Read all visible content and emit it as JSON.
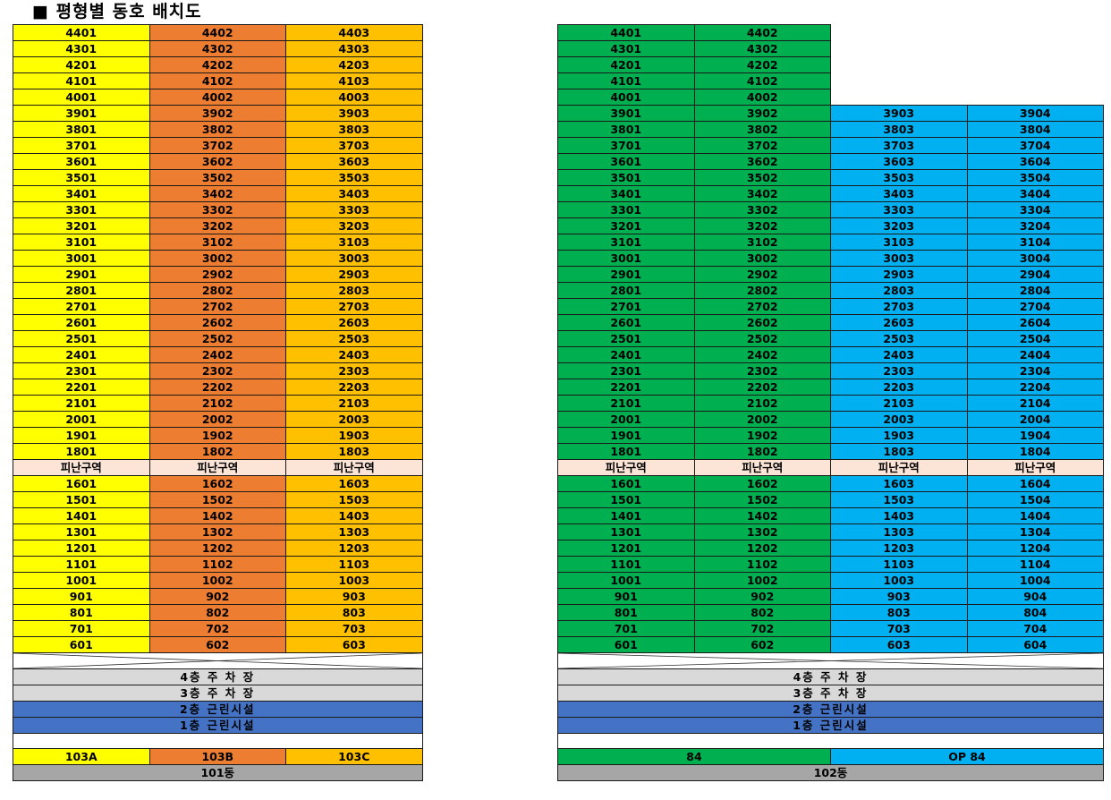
{
  "title": "■ 평형별 동호 배치도",
  "colors": {
    "type_103A": "#ffff00",
    "type_103B": "#ed7d31",
    "type_103C": "#ffc000",
    "type_84": "#00b050",
    "type_op84": "#00b0f0",
    "refuge": "#fce4d6",
    "parking": "#d9d9d9",
    "commercial": "#4472c4",
    "building_label": "#a6a6a6",
    "blank": "#ffffff"
  },
  "refuge_label": "피난구역",
  "floors_upper": [
    44,
    43,
    42,
    41,
    40,
    39,
    38,
    37,
    36,
    35,
    34,
    33,
    32,
    31,
    30,
    29,
    28,
    27,
    26,
    25,
    24,
    23,
    22,
    21,
    20,
    19,
    18
  ],
  "floors_lower": [
    16,
    15,
    14,
    13,
    12,
    11,
    10,
    9,
    8,
    7,
    6
  ],
  "base_floors": [
    {
      "label": "4층  주 차 장",
      "type": "parking"
    },
    {
      "label": "3층  주 차 장",
      "type": "parking"
    },
    {
      "label": "2층 근린시설",
      "type": "commercial"
    },
    {
      "label": "1층 근린시설",
      "type": "commercial"
    }
  ],
  "buildings": [
    {
      "name": "101동",
      "columns": [
        {
          "line": 1,
          "type": "type_103A",
          "type_label": "103A",
          "min_floor": 6,
          "max_floor": 44
        },
        {
          "line": 2,
          "type": "type_103B",
          "type_label": "103B",
          "min_floor": 6,
          "max_floor": 44
        },
        {
          "line": 3,
          "type": "type_103C",
          "type_label": "103C",
          "min_floor": 6,
          "max_floor": 44
        }
      ],
      "type_groups": [
        {
          "label": "103A",
          "span": 1,
          "type": "type_103A"
        },
        {
          "label": "103B",
          "span": 1,
          "type": "type_103B"
        },
        {
          "label": "103C",
          "span": 1,
          "type": "type_103C"
        }
      ]
    },
    {
      "name": "102동",
      "columns": [
        {
          "line": 1,
          "type": "type_84",
          "type_label": "84",
          "min_floor": 6,
          "max_floor": 44
        },
        {
          "line": 2,
          "type": "type_84",
          "type_label": "84",
          "min_floor": 6,
          "max_floor": 44
        },
        {
          "line": 3,
          "type": "type_op84",
          "type_label": "OP 84",
          "min_floor": 6,
          "max_floor": 39
        },
        {
          "line": 4,
          "type": "type_op84",
          "type_label": "OP 84",
          "min_floor": 6,
          "max_floor": 39
        }
      ],
      "type_groups": [
        {
          "label": "84",
          "span": 2,
          "type": "type_84"
        },
        {
          "label": "OP 84",
          "span": 2,
          "type": "type_op84"
        }
      ]
    }
  ]
}
